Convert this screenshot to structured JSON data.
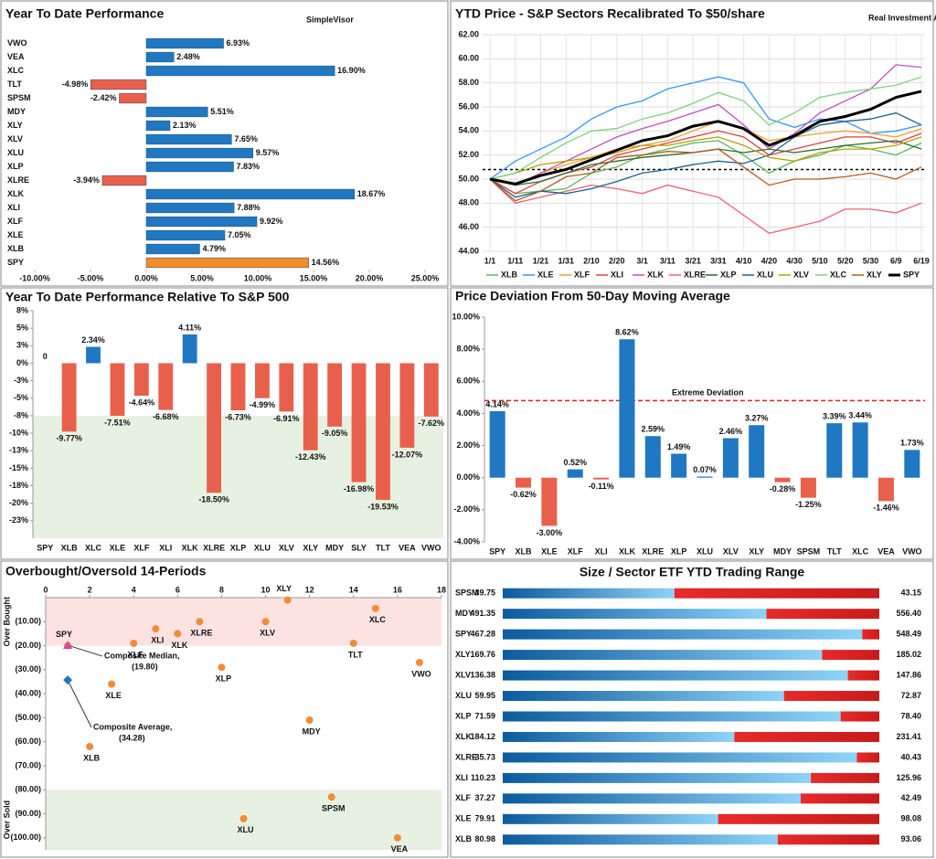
{
  "chart_data": [
    {
      "type": "hbar",
      "title": "Year To Date Performance",
      "logo": "SimpleVisor",
      "categories": [
        "VWO",
        "VEA",
        "XLC",
        "TLT",
        "SPSM",
        "MDY",
        "XLY",
        "XLV",
        "XLU",
        "XLP",
        "XLRE",
        "XLK",
        "XLI",
        "XLF",
        "XLE",
        "XLB",
        "SPY"
      ],
      "values": [
        6.93,
        2.48,
        16.9,
        -4.98,
        -2.42,
        5.51,
        2.13,
        7.65,
        9.57,
        7.83,
        -3.94,
        18.67,
        7.88,
        9.92,
        7.05,
        4.79,
        14.56
      ],
      "value_labels": [
        "6.93%",
        "2.48%",
        "16.90%",
        "-4.98%",
        "-2.42%",
        "5.51%",
        "2.13%",
        "7.65%",
        "9.57%",
        "7.83%",
        "-3.94%",
        "18.67%",
        "7.88%",
        "9.92%",
        "7.05%",
        "4.79%",
        "14.56%"
      ],
      "colors": [
        "#1f78c1",
        "#1f78c1",
        "#1f78c1",
        "#e8604c",
        "#e8604c",
        "#1f78c1",
        "#1f78c1",
        "#1f78c1",
        "#1f78c1",
        "#1f78c1",
        "#e8604c",
        "#1f78c1",
        "#1f78c1",
        "#1f78c1",
        "#1f78c1",
        "#1f78c1",
        "#f28e2b"
      ],
      "xlim": [
        -10,
        25
      ],
      "xticks": [
        {
          "value": -10,
          "label": "-10.00%"
        },
        {
          "value": -5,
          "label": "-5.00%"
        },
        {
          "value": 0,
          "label": "0.00%"
        },
        {
          "value": 5,
          "label": "5.00%"
        },
        {
          "value": 10,
          "label": "10.00%"
        },
        {
          "value": 15,
          "label": "15.00%"
        },
        {
          "value": 20,
          "label": "20.00%"
        },
        {
          "value": 25,
          "label": "25.00%"
        }
      ]
    },
    {
      "type": "line",
      "title": "YTD Price - S&P Sectors Recalibrated To $50/share",
      "logo": "Real Investment Advice",
      "categories": [
        "1/1",
        "1/11",
        "1/21",
        "1/31",
        "2/10",
        "2/20",
        "3/1",
        "3/11",
        "3/21",
        "3/31",
        "4/10",
        "4/20",
        "4/30",
        "5/10",
        "5/20",
        "5/30",
        "6/9",
        "6/19"
      ],
      "series": [
        {
          "name": "XLB",
          "color": "#5cb85c",
          "values": [
            50,
            48.8,
            49,
            49.2,
            50.5,
            51,
            52,
            52.5,
            53,
            53.2,
            52,
            50.5,
            51.5,
            52,
            52.8,
            52.5,
            52,
            53
          ]
        },
        {
          "name": "XLE",
          "color": "#3399ff",
          "values": [
            50,
            51.5,
            52.5,
            53.5,
            55,
            56,
            56.5,
            57.5,
            58,
            58.5,
            58,
            55,
            54.3,
            55,
            54.8,
            53.8,
            54,
            54.5
          ]
        },
        {
          "name": "XLF",
          "color": "#f0a030",
          "values": [
            50,
            49.5,
            50.5,
            51.2,
            51.8,
            52.5,
            52.8,
            53.2,
            54,
            54.8,
            54.2,
            53.2,
            53.5,
            53.8,
            54,
            53.8,
            53.5,
            54.2
          ]
        },
        {
          "name": "XLI",
          "color": "#e04040",
          "values": [
            50,
            48.8,
            49.8,
            50.5,
            51,
            52,
            52.5,
            53,
            53.5,
            54,
            53.5,
            52,
            52.5,
            53,
            53.5,
            53.5,
            53,
            53.8
          ]
        },
        {
          "name": "XLK",
          "color": "#c050c0",
          "values": [
            50,
            49.5,
            50.5,
            51.5,
            52.5,
            53.5,
            54.2,
            54.8,
            55.5,
            56.2,
            54.5,
            52.5,
            53.8,
            55.5,
            56.5,
            57.5,
            59.5,
            59.3
          ]
        },
        {
          "name": "XLRE",
          "color": "#f06070",
          "values": [
            50,
            48,
            48.5,
            49,
            49.5,
            49.2,
            48.8,
            49.5,
            49,
            48.5,
            47,
            45.5,
            46,
            46.5,
            47.5,
            47.5,
            47.2,
            48
          ]
        },
        {
          "name": "XLP",
          "color": "#2e6b2e",
          "values": [
            50,
            49.5,
            49.8,
            50.5,
            51.2,
            51.5,
            51.8,
            52,
            52.2,
            52.5,
            52.2,
            52.5,
            52.2,
            52.5,
            52.8,
            53,
            53.2,
            52.5
          ]
        },
        {
          "name": "XLU",
          "color": "#1f5f8b",
          "values": [
            50,
            48.5,
            49,
            48.8,
            49.2,
            49.8,
            50.5,
            50.8,
            51.2,
            51.5,
            51.3,
            52,
            53.5,
            54.5,
            54.8,
            55,
            55.5,
            54.5
          ]
        },
        {
          "name": "XLV",
          "color": "#b8a000",
          "values": [
            50,
            50.5,
            51.2,
            51.5,
            51.8,
            52.2,
            52.8,
            52.8,
            53.2,
            53.5,
            52.8,
            51.8,
            51.5,
            52.2,
            52.5,
            52.5,
            52.8,
            53.5
          ]
        },
        {
          "name": "XLC",
          "color": "#80d080",
          "values": [
            50,
            50.5,
            51.8,
            53,
            54,
            54.2,
            55,
            55.5,
            56.3,
            57.2,
            56.5,
            54.5,
            55.5,
            56.8,
            57.2,
            57.5,
            57.8,
            58.5
          ]
        },
        {
          "name": "XLY",
          "color": "#b35a1f",
          "values": [
            50,
            48.2,
            49,
            50.2,
            50.5,
            51.8,
            52,
            52.3,
            52.2,
            52.5,
            51,
            49.5,
            50,
            50,
            50.2,
            50.5,
            50,
            51
          ]
        },
        {
          "name": "SPY",
          "color": "#000000",
          "values": [
            50,
            49.6,
            50.3,
            50.8,
            51.6,
            52.4,
            53.2,
            53.6,
            54.4,
            54.8,
            54.2,
            52.8,
            53.6,
            54.8,
            55.2,
            55.8,
            56.8,
            57.3
          ]
        }
      ],
      "ylim": [
        44,
        62
      ],
      "yticks": [
        {
          "value": 44,
          "label": "44.00"
        },
        {
          "value": 46,
          "label": "46.00"
        },
        {
          "value": 48,
          "label": "48.00"
        },
        {
          "value": 50,
          "label": "50.00"
        },
        {
          "value": 52,
          "label": "52.00"
        },
        {
          "value": 54,
          "label": "54.00"
        },
        {
          "value": 56,
          "label": "56.00"
        },
        {
          "value": 58,
          "label": "58.00"
        },
        {
          "value": 60,
          "label": "60.00"
        },
        {
          "value": 62,
          "label": "62.00"
        }
      ],
      "reference_line": 50.8,
      "grid": true,
      "legend": "bottom"
    },
    {
      "type": "bar",
      "title": "Year To Date Performance Relative To S&P 500",
      "categories": [
        "SPY",
        "XLB",
        "XLC",
        "XLE",
        "XLF",
        "XLI",
        "XLK",
        "XLRE",
        "XLP",
        "XLU",
        "XLV",
        "XLY",
        "MDY",
        "SLY",
        "TLT",
        "VEA",
        "VWO"
      ],
      "values": [
        0,
        -9.77,
        2.34,
        -7.51,
        -4.64,
        -6.68,
        4.11,
        -18.5,
        -6.73,
        -4.99,
        -6.91,
        -12.43,
        -9.05,
        -16.98,
        -19.53,
        -12.07,
        -7.62
      ],
      "value_labels": [
        "0",
        "-9.77%",
        "2.34%",
        "-7.51%",
        "-4.64%",
        "-6.68%",
        "4.11%",
        "-18.50%",
        "-6.73%",
        "-4.99%",
        "-6.91%",
        "-12.43%",
        "-9.05%",
        "-16.98%",
        "-19.53%",
        "-12.07%",
        "-7.62%"
      ],
      "colors": [
        "#1f78c1",
        "#e8604c",
        "#1f78c1",
        "#e8604c",
        "#e8604c",
        "#e8604c",
        "#1f78c1",
        "#e8604c",
        "#e8604c",
        "#e8604c",
        "#e8604c",
        "#e8604c",
        "#e8604c",
        "#e8604c",
        "#e8604c",
        "#e8604c",
        "#e8604c"
      ],
      "ylim": [
        -25,
        7.5
      ],
      "yticks": [
        {
          "value": 7.5,
          "label": "8%"
        },
        {
          "value": 5,
          "label": "5%"
        },
        {
          "value": 2.5,
          "label": "3%"
        },
        {
          "value": 0,
          "label": "0%"
        },
        {
          "value": -2.5,
          "label": "-3%"
        },
        {
          "value": -5,
          "label": "-5%"
        },
        {
          "value": -7.5,
          "label": "-8%"
        },
        {
          "value": -10,
          "label": "-10%"
        },
        {
          "value": -12.5,
          "label": "-13%"
        },
        {
          "value": -15,
          "label": "-15%"
        },
        {
          "value": -17.5,
          "label": "-18%"
        },
        {
          "value": -20,
          "label": "-20%"
        },
        {
          "value": -22.5,
          "label": "-23%"
        }
      ],
      "shade_below": -7.5,
      "shade_color": "#e6f1e1"
    },
    {
      "type": "bar",
      "title": "Price Deviation From 50-Day Moving Average",
      "categories": [
        "SPY",
        "XLB",
        "XLE",
        "XLF",
        "XLI",
        "XLK",
        "XLRE",
        "XLP",
        "XLU",
        "XLV",
        "XLY",
        "MDY",
        "SPSM",
        "TLT",
        "XLC",
        "VEA",
        "VWO"
      ],
      "values": [
        4.14,
        -0.62,
        -3.0,
        0.52,
        -0.11,
        8.62,
        2.59,
        1.49,
        0.07,
        2.46,
        3.27,
        -0.28,
        -1.25,
        3.39,
        3.44,
        -1.46,
        1.73
      ],
      "value_labels": [
        "4.14%",
        "-0.62%",
        "-3.00%",
        "0.52%",
        "-0.11%",
        "8.62%",
        "2.59%",
        "1.49%",
        "0.07%",
        "2.46%",
        "3.27%",
        "-0.28%",
        "-1.25%",
        "3.39%",
        "3.44%",
        "-1.46%",
        "1.73%"
      ],
      "colors": [
        "#1f78c1",
        "#e8604c",
        "#e8604c",
        "#1f78c1",
        "#e8604c",
        "#1f78c1",
        "#1f78c1",
        "#1f78c1",
        "#1f78c1",
        "#1f78c1",
        "#1f78c1",
        "#e8604c",
        "#e8604c",
        "#1f78c1",
        "#1f78c1",
        "#e8604c",
        "#1f78c1"
      ],
      "ylim": [
        -4,
        10
      ],
      "yticks": [
        {
          "value": -4,
          "label": "-4.00%"
        },
        {
          "value": -2,
          "label": "-2.00%"
        },
        {
          "value": 0,
          "label": "0.00%"
        },
        {
          "value": 2,
          "label": "2.00%"
        },
        {
          "value": 4,
          "label": "4.00%"
        },
        {
          "value": 6,
          "label": "6.00%"
        },
        {
          "value": 8,
          "label": "8.00%"
        },
        {
          "value": 10,
          "label": "10.00%"
        }
      ],
      "threshold": {
        "value": 4.8,
        "label": "Extreme Deviation",
        "color": "#e02020"
      }
    },
    {
      "type": "scatter",
      "title": "Overbought/Oversold 14-Periods",
      "categories": [
        "SPY",
        "XLB",
        "XLE",
        "XLF",
        "XLI",
        "XLK",
        "XLRE",
        "XLP",
        "XLU",
        "XLV",
        "XLY",
        "MDY",
        "SPSM",
        "TLT",
        "XLC",
        "VEA",
        "VWO"
      ],
      "x": [
        1,
        2,
        3,
        4,
        5,
        6,
        7,
        8,
        9,
        10,
        11,
        12,
        13,
        14,
        15,
        16,
        17
      ],
      "values": [
        -20,
        -62,
        -36,
        -19,
        -13,
        -15,
        -10,
        -29,
        -92,
        -10,
        -1,
        -51,
        -83,
        -19,
        -4.5,
        -100,
        -27
      ],
      "color": "#f08c3c",
      "xlim": [
        0,
        18
      ],
      "xticks": [
        0,
        2,
        4,
        6,
        8,
        10,
        12,
        14,
        16,
        18
      ],
      "ylim": [
        -105,
        0
      ],
      "yticks": [
        {
          "value": -10,
          "label": "(10.00)"
        },
        {
          "value": -20,
          "label": "(20.00)"
        },
        {
          "value": -30,
          "label": "(30.00)"
        },
        {
          "value": -40,
          "label": "(40.00)"
        },
        {
          "value": -50,
          "label": "(50.00)"
        },
        {
          "value": -60,
          "label": "(60.00)"
        },
        {
          "value": -70,
          "label": "(70.00)"
        },
        {
          "value": -80,
          "label": "(80.00)"
        },
        {
          "value": -90,
          "label": "(90.00)"
        },
        {
          "value": -100,
          "label": "(100.00)"
        }
      ],
      "bands": [
        {
          "from": -20,
          "to": 0,
          "label": "Over Bought",
          "color": "#fde2e2",
          "label_color": "#e03030"
        },
        {
          "from": -105,
          "to": -80,
          "label": "Over Sold",
          "color": "#e6f1e1",
          "label_color": "#3a8a3a"
        }
      ],
      "markers": [
        {
          "name": "Composite Median,",
          "x": 1,
          "y": -19.8,
          "label": "(19.80)",
          "shape": "triangle",
          "color": "#d04aa0"
        },
        {
          "name": "Composite Average,",
          "x": 1,
          "y": -34.28,
          "label": "(34.28)",
          "shape": "diamond",
          "color": "#1f78c1"
        }
      ]
    },
    {
      "type": "range",
      "title": "Size / Sector ETF YTD Trading Range",
      "categories": [
        "SPSM",
        "MDY",
        "SPY",
        "XLY",
        "XLV",
        "XLU",
        "XLP",
        "XLK",
        "XLRE",
        "XLI",
        "XLF",
        "XLE",
        "XLB"
      ],
      "lows": [
        39.75,
        491.35,
        467.28,
        169.76,
        136.38,
        59.95,
        71.59,
        184.12,
        35.73,
        110.23,
        37.27,
        79.91,
        80.98
      ],
      "highs": [
        43.15,
        556.4,
        548.49,
        185.02,
        147.86,
        72.87,
        78.4,
        231.41,
        40.43,
        125.96,
        42.49,
        98.08,
        93.06
      ],
      "high_labels": [
        "43.15",
        "556.40",
        "548.49",
        "185.02",
        "147.86",
        "72.87",
        "78.40",
        "231.41",
        "40.43",
        "125.96",
        "42.49",
        "98.08",
        "93.06"
      ],
      "current": [
        41.3,
        536.9,
        544.8,
        182.7,
        146.9,
        69.6,
        77.7,
        213.2,
        40.15,
        123.1,
        41.4,
        90.3,
        89.8
      ]
    }
  ]
}
